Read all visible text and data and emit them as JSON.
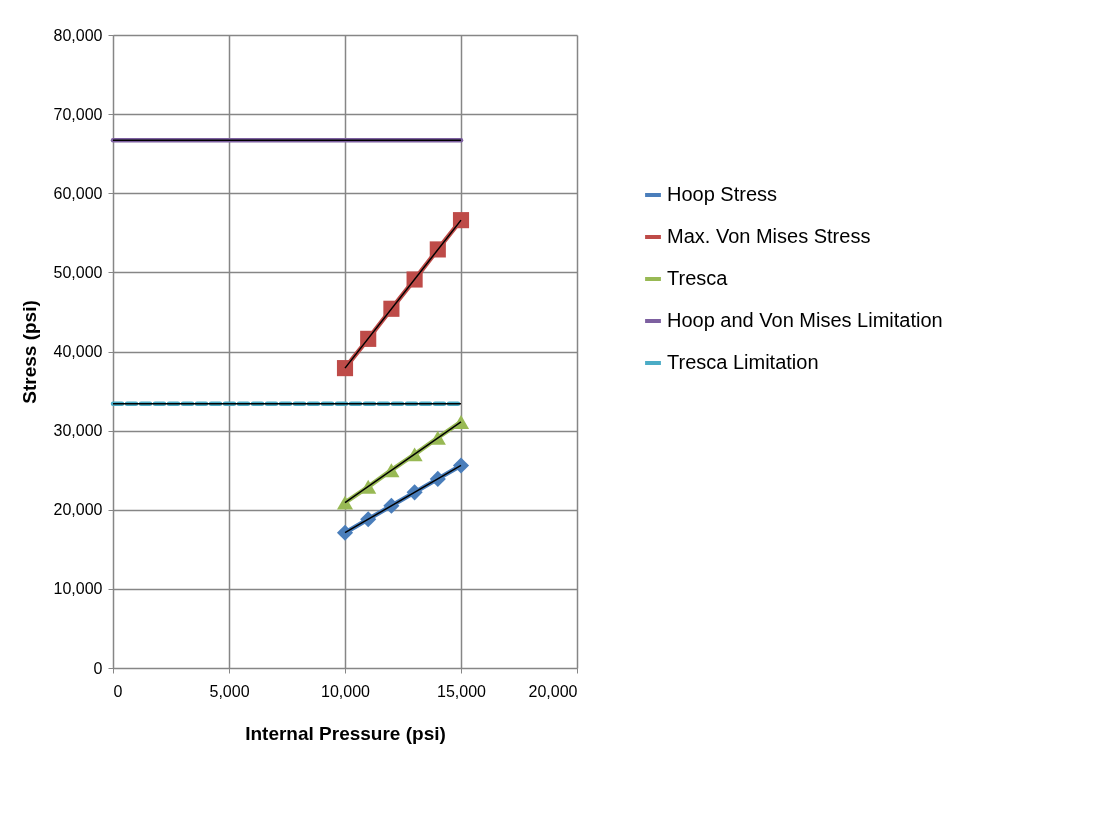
{
  "chart_data": {
    "type": "line",
    "xlabel": "Internal Pressure (psi)",
    "ylabel": "Stress (psi)",
    "xlim": [
      0,
      20000
    ],
    "xticks": [
      {
        "value": 0,
        "label": "0"
      },
      {
        "value": 5000,
        "label": "5,000"
      },
      {
        "value": 10000,
        "label": "10,000"
      },
      {
        "value": 15000,
        "label": "15,000"
      },
      {
        "value": 20000,
        "label": "20,000"
      }
    ],
    "ylim": [
      0,
      80000
    ],
    "yticks": [
      {
        "value": 0,
        "label": "0"
      },
      {
        "value": 10000,
        "label": "10,000"
      },
      {
        "value": 20000,
        "label": "20,000"
      },
      {
        "value": 30000,
        "label": "30,000"
      },
      {
        "value": 40000,
        "label": "40,000"
      },
      {
        "value": 50000,
        "label": "50,000"
      },
      {
        "value": 60000,
        "label": "60,000"
      },
      {
        "value": 70000,
        "label": "70,000"
      },
      {
        "value": 80000,
        "label": "80,000"
      }
    ],
    "grid": true,
    "legend": "right",
    "series": [
      {
        "name": "Hoop Stress",
        "color": "#4a7ebb",
        "marker": "diamond",
        "x": [
          10000,
          11000,
          12000,
          13000,
          14000,
          15000
        ],
        "values": [
          17100,
          18800,
          20500,
          22200,
          23900,
          25600
        ]
      },
      {
        "name": "Max. Von Mises Stress",
        "color": "#be4b48",
        "marker": "square",
        "x": [
          10000,
          11000,
          12000,
          13000,
          14000,
          15000
        ],
        "values": [
          37900,
          41600,
          45400,
          49100,
          52900,
          56600
        ]
      },
      {
        "name": "Tresca",
        "color": "#98b954",
        "marker": "triangle",
        "x": [
          10000,
          11000,
          12000,
          13000,
          14000,
          15000
        ],
        "values": [
          20900,
          22900,
          25000,
          27000,
          29100,
          31100
        ]
      },
      {
        "name": "Hoop and Von Mises Limitation",
        "color": "#7d60a0",
        "marker": "none",
        "x": [
          0,
          15000
        ],
        "values": [
          66700,
          66700
        ]
      },
      {
        "name": "Tresca Limitation",
        "color": "#4bacc6",
        "marker": "none",
        "line_style": "dashed",
        "x": [
          0,
          15000
        ],
        "values": [
          33400,
          33400
        ]
      },
      {
        "type": "line",
        "color": "#000000",
        "x": [
          10000,
          15000
        ],
        "values": [
          17100,
          25600
        ]
      },
      {
        "type": "line",
        "color": "#000000",
        "x": [
          10000,
          15000
        ],
        "values": [
          37900,
          56600
        ]
      },
      {
        "type": "line",
        "color": "#000000",
        "x": [
          10000,
          15000
        ],
        "values": [
          20900,
          31100
        ]
      },
      {
        "type": "line",
        "color": "#000000",
        "x": [
          0,
          15000
        ],
        "values": [
          66700,
          66700
        ]
      },
      {
        "type": "line",
        "color": "#000000",
        "x": [
          0,
          15000
        ],
        "values": [
          33400,
          33400
        ]
      }
    ]
  }
}
